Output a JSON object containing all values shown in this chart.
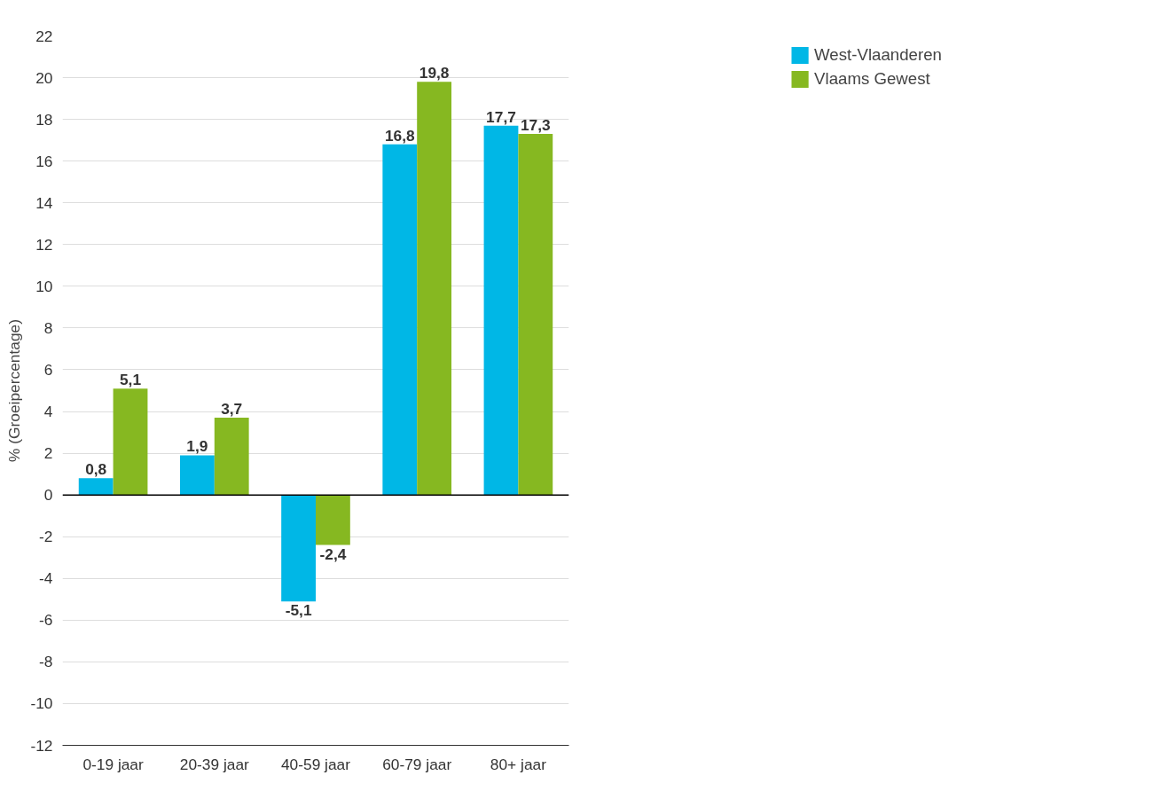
{
  "chart_data": {
    "type": "bar",
    "ylabel": "% (Groeipercentage)",
    "categories": [
      "0-19 jaar",
      "20-39 jaar",
      "40-59 jaar",
      "60-79 jaar",
      "80+ jaar"
    ],
    "series": [
      {
        "name": "West-Vlaanderen",
        "color": "#00b7e6",
        "values": [
          0.8,
          1.9,
          -5.1,
          16.8,
          17.7
        ],
        "value_labels": [
          "0,8",
          "1,9",
          "-5,1",
          "16,8",
          "17,7"
        ]
      },
      {
        "name": "Vlaams Gewest",
        "color": "#86b821",
        "values": [
          5.1,
          3.7,
          -2.4,
          19.8,
          17.3
        ],
        "value_labels": [
          "5,1",
          "3,7",
          "-2,4",
          "19,8",
          "17,3"
        ]
      }
    ],
    "ylim": [
      -12,
      22
    ],
    "yticks": [
      -12,
      -10,
      -8,
      -6,
      -4,
      -2,
      0,
      2,
      4,
      6,
      8,
      10,
      12,
      14,
      16,
      18,
      20,
      22
    ],
    "grid": "y",
    "legend": "top right",
    "ref_lines": [
      {
        "axis": "y",
        "value": 0,
        "color": "#000000"
      }
    ]
  }
}
